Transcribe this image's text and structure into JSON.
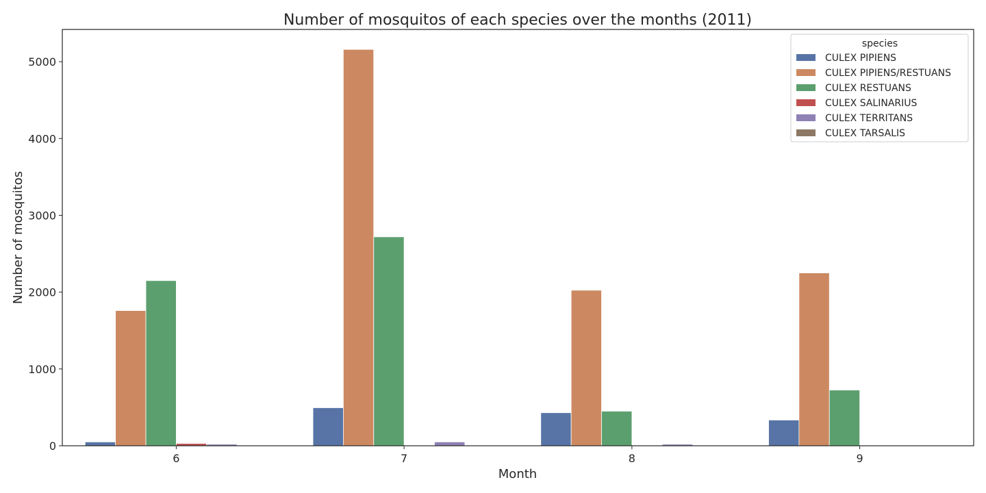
{
  "chart_data": {
    "type": "bar",
    "title": "Number of mosquitos of each species over the months (2011)",
    "xlabel": "Month",
    "ylabel": "Number of mosquitos",
    "categories": [
      "6",
      "7",
      "8",
      "9"
    ],
    "ylim": [
      0,
      5420
    ],
    "yticks": [
      0,
      1000,
      2000,
      3000,
      4000,
      5000
    ],
    "grid": false,
    "legend": {
      "title": "species",
      "placement": "top-right"
    },
    "series": [
      {
        "name": "CULEX PIPIENS",
        "color": "#5874a6",
        "values": [
          50,
          495,
          430,
          335
        ]
      },
      {
        "name": "CULEX PIPIENS/RESTUANS",
        "color": "#cc8961",
        "values": [
          1760,
          5160,
          2025,
          2250
        ]
      },
      {
        "name": "CULEX RESTUANS",
        "color": "#5c9f6e",
        "values": [
          2150,
          2720,
          450,
          725
        ]
      },
      {
        "name": "CULEX SALINARIUS",
        "color": "#c0504f",
        "values": [
          30,
          0,
          0,
          0
        ]
      },
      {
        "name": "CULEX TERRITANS",
        "color": "#8e81b4",
        "values": [
          20,
          50,
          20,
          0
        ]
      },
      {
        "name": "CULEX TARSALIS",
        "color": "#8d7865",
        "values": [
          0,
          0,
          0,
          0
        ]
      }
    ]
  }
}
